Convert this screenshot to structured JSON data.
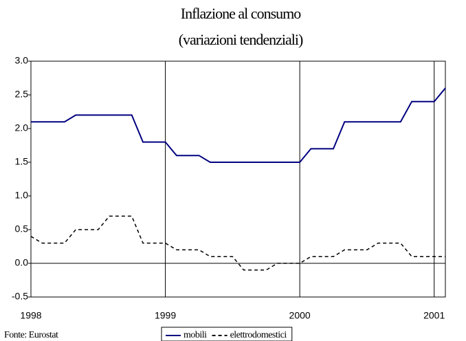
{
  "chart_data": {
    "type": "line",
    "title": "Inflazione al consumo",
    "subtitle": "(variazioni tendenziali)",
    "source": "Fonte: Eurostat",
    "categories": [
      "1998",
      null,
      null,
      null,
      null,
      null,
      null,
      null,
      null,
      null,
      null,
      null,
      "1999",
      null,
      null,
      null,
      null,
      null,
      null,
      null,
      null,
      null,
      null,
      null,
      "2000",
      null,
      null,
      null,
      null,
      null,
      null,
      null,
      null,
      null,
      null,
      null,
      "2001",
      null
    ],
    "series": [
      {
        "name": "mobili",
        "color": "#000080",
        "dash": "solid",
        "values": [
          2.1,
          2.1,
          2.1,
          2.1,
          2.2,
          2.2,
          2.2,
          2.2,
          2.2,
          2.2,
          1.8,
          1.8,
          1.8,
          1.6,
          1.6,
          1.6,
          1.5,
          1.5,
          1.5,
          1.5,
          1.5,
          1.5,
          1.5,
          1.5,
          1.5,
          1.7,
          1.7,
          1.7,
          2.1,
          2.1,
          2.1,
          2.1,
          2.1,
          2.1,
          2.4,
          2.4,
          2.4,
          2.6
        ]
      },
      {
        "name": "elettrodomestici",
        "color": "#000000",
        "dash": "dotted",
        "values": [
          0.4,
          0.3,
          0.3,
          0.3,
          0.5,
          0.5,
          0.5,
          0.7,
          0.7,
          0.7,
          0.3,
          0.3,
          0.3,
          0.2,
          0.2,
          0.2,
          0.1,
          0.1,
          0.1,
          -0.1,
          -0.1,
          -0.1,
          0.0,
          0.0,
          0.0,
          0.1,
          0.1,
          0.1,
          0.2,
          0.2,
          0.2,
          0.3,
          0.3,
          0.3,
          0.1,
          0.1,
          0.1,
          0.1
        ]
      }
    ],
    "ylim": [
      -0.5,
      3.0
    ],
    "yticks": [
      -0.5,
      {
        "value": 0,
        "label": "0.0"
      },
      0.5,
      {
        "value": 1,
        "label": "1.0"
      },
      1.5,
      {
        "value": 2,
        "label": "2.0"
      },
      2.5,
      {
        "value": 3,
        "label": "3.0"
      }
    ],
    "legend": "bottom"
  }
}
